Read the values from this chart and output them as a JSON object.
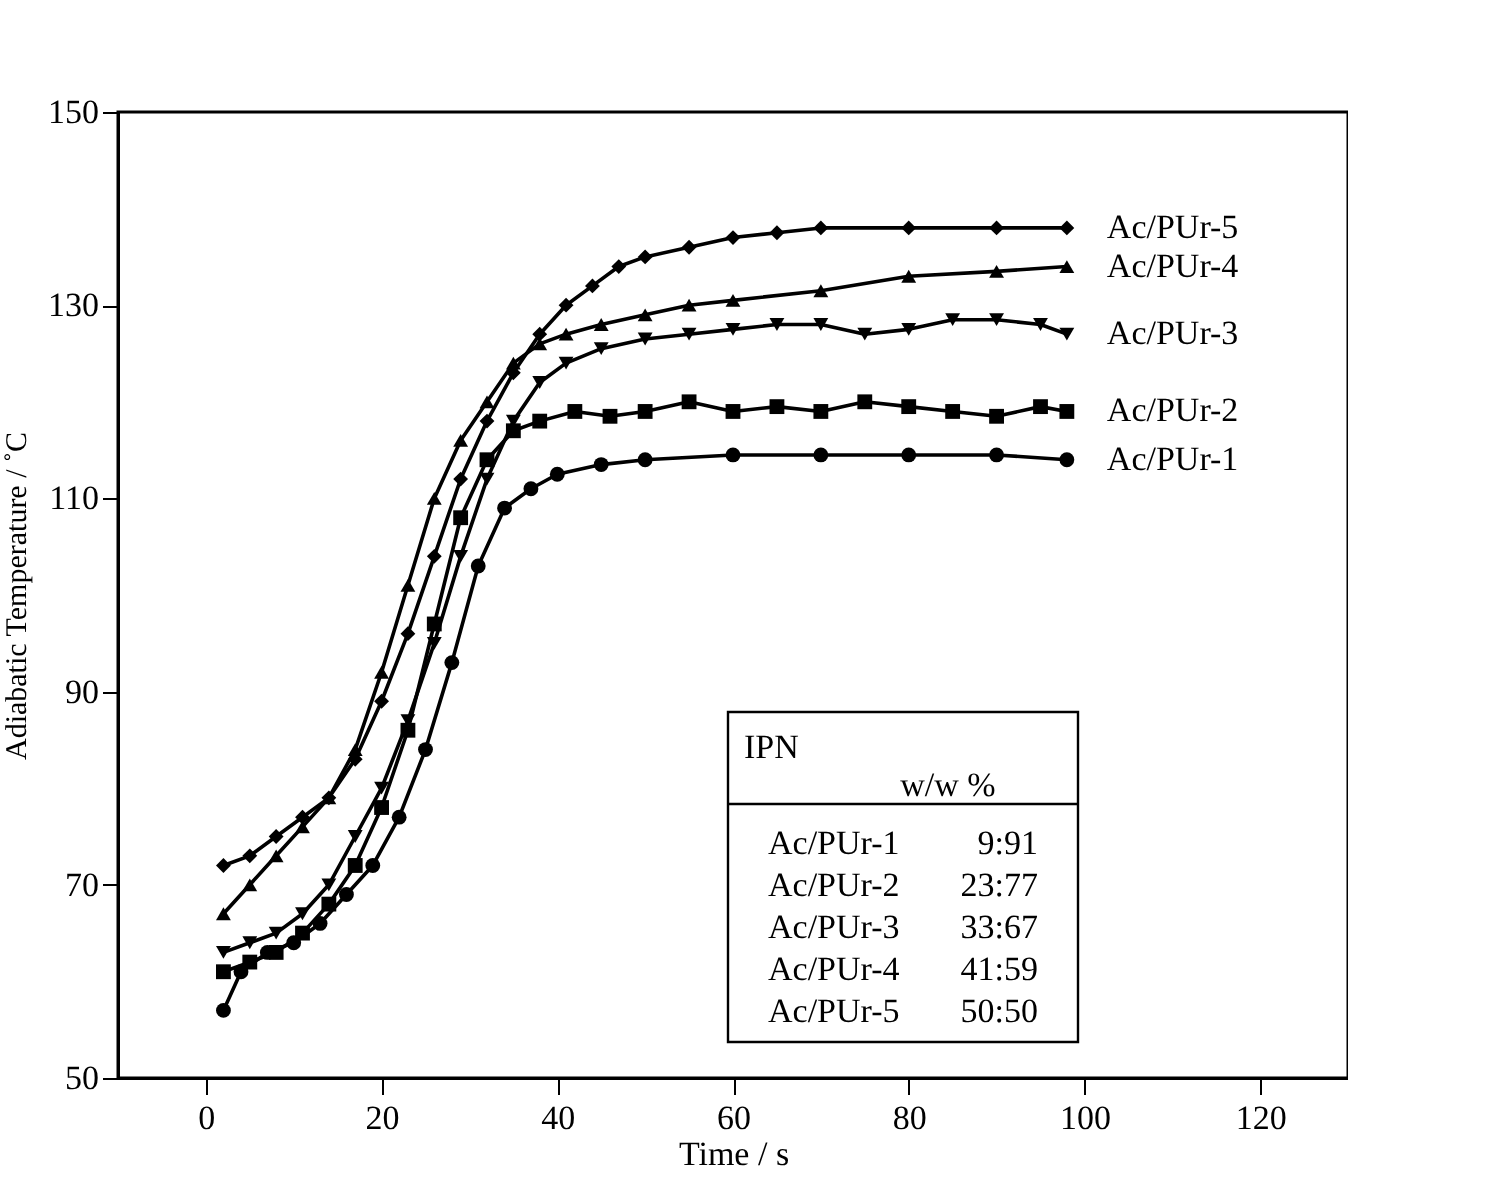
{
  "chart_data": {
    "type": "line",
    "xlabel": "Time / s",
    "ylabel": "Adiabatic Temperature / ˚C",
    "xlim": [
      -10,
      130
    ],
    "xticks": [
      0,
      20,
      40,
      60,
      80,
      100,
      120
    ],
    "ylim": [
      50,
      150
    ],
    "yticks": [
      50,
      70,
      90,
      110,
      130,
      150
    ],
    "grid": false,
    "series": [
      {
        "name": "Ac/PUr-5",
        "color": "#000000",
        "marker": "diamond",
        "x": [
          2,
          5,
          8,
          11,
          14,
          17,
          20,
          23,
          26,
          29,
          32,
          35,
          38,
          41,
          44,
          47,
          50,
          55,
          60,
          65,
          70,
          80,
          90,
          98
        ],
        "values": [
          72,
          73,
          75,
          77,
          79,
          83,
          89,
          96,
          104,
          112,
          118,
          123,
          127,
          130,
          132,
          134,
          135,
          136,
          137,
          137.5,
          138,
          138,
          138,
          138
        ]
      },
      {
        "name": "Ac/PUr-4",
        "color": "#000000",
        "marker": "triangle",
        "x": [
          2,
          5,
          8,
          11,
          14,
          17,
          20,
          23,
          26,
          29,
          32,
          35,
          38,
          41,
          45,
          50,
          55,
          60,
          70,
          80,
          90,
          98
        ],
        "values": [
          67,
          70,
          73,
          76,
          79,
          84,
          92,
          101,
          110,
          116,
          120,
          124,
          126,
          127,
          128,
          129,
          130,
          130.5,
          131.5,
          133,
          133.5,
          134
        ]
      },
      {
        "name": "Ac/PUr-3",
        "color": "#000000",
        "marker": "triangle-down",
        "x": [
          2,
          5,
          8,
          11,
          14,
          17,
          20,
          23,
          26,
          29,
          32,
          35,
          38,
          41,
          45,
          50,
          55,
          60,
          65,
          70,
          75,
          80,
          85,
          90,
          95,
          98
        ],
        "values": [
          63,
          64,
          65,
          67,
          70,
          75,
          80,
          87,
          95,
          104,
          112,
          118,
          122,
          124,
          125.5,
          126.5,
          127,
          127.5,
          128,
          128,
          127,
          127.5,
          128.5,
          128.5,
          128,
          127
        ]
      },
      {
        "name": "Ac/PUr-2",
        "color": "#000000",
        "marker": "square",
        "x": [
          2,
          5,
          8,
          11,
          14,
          17,
          20,
          23,
          26,
          29,
          32,
          35,
          38,
          42,
          46,
          50,
          55,
          60,
          65,
          70,
          75,
          80,
          85,
          90,
          95,
          98
        ],
        "values": [
          61,
          62,
          63,
          65,
          68,
          72,
          78,
          86,
          97,
          108,
          114,
          117,
          118,
          119,
          118.5,
          119,
          120,
          119,
          119.5,
          119,
          120,
          119.5,
          119,
          118.5,
          119.5,
          119
        ]
      },
      {
        "name": "Ac/PUr-1",
        "color": "#000000",
        "marker": "circle",
        "x": [
          2,
          4,
          7,
          10,
          13,
          16,
          19,
          22,
          25,
          28,
          31,
          34,
          37,
          40,
          45,
          50,
          60,
          70,
          80,
          90,
          98
        ],
        "values": [
          57,
          61,
          63,
          64,
          66,
          69,
          72,
          77,
          84,
          93,
          103,
          109,
          111,
          112.5,
          113.5,
          114,
          114.5,
          114.5,
          114.5,
          114.5,
          114
        ]
      }
    ],
    "annotations": [
      "IPN",
      "w/w %",
      "Ac/PUr-1",
      "9:91",
      "Ac/PUr-2",
      "23:77",
      "Ac/PUr-3",
      "33:67",
      "Ac/PUr-4",
      "41:59",
      "Ac/PUr-5",
      "50:50"
    ]
  }
}
